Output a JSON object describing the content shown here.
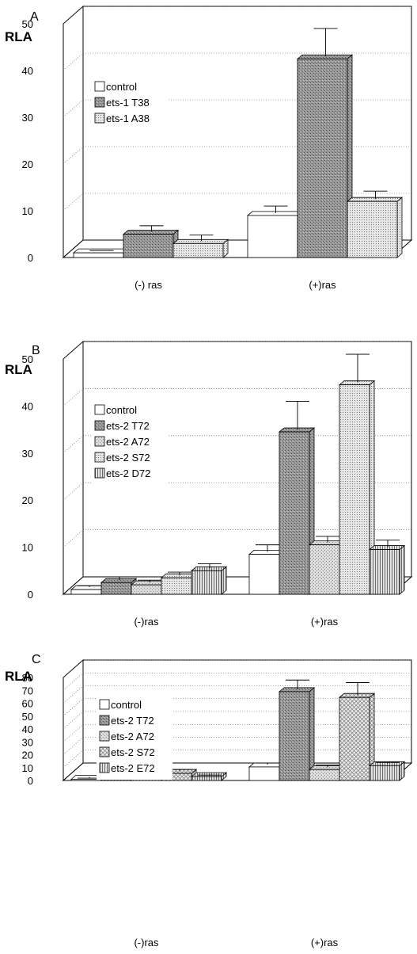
{
  "chart_data": [
    {
      "panel_label": "A",
      "type": "bar",
      "ylabel": "RLA",
      "ylim": [
        0,
        50
      ],
      "yticks": [
        0,
        10,
        20,
        30,
        40,
        50
      ],
      "categories": [
        "(-) ras",
        "(+)ras"
      ],
      "legend_position": "top-left",
      "grid": true,
      "series": [
        {
          "name": "control",
          "pattern": "white",
          "values": [
            1.0,
            9.0
          ],
          "errors": [
            0.5,
            2.0
          ]
        },
        {
          "name": "ets-1 T38",
          "pattern": "dark-stipple",
          "values": [
            5.0,
            42.5
          ],
          "errors": [
            1.8,
            6.5
          ]
        },
        {
          "name": "ets-1 A38",
          "pattern": "dots",
          "values": [
            3.0,
            12.0
          ],
          "errors": [
            1.8,
            2.2
          ]
        }
      ]
    },
    {
      "panel_label": "B",
      "type": "bar",
      "ylabel": "RLA",
      "ylim": [
        0,
        50
      ],
      "yticks": [
        0,
        10,
        20,
        30,
        40,
        50
      ],
      "categories": [
        "(-)ras",
        "(+)ras"
      ],
      "legend_position": "top-left",
      "grid": true,
      "series": [
        {
          "name": "control",
          "pattern": "white",
          "values": [
            1.0,
            8.5
          ],
          "errors": [
            0.8,
            2.0
          ]
        },
        {
          "name": "ets-2 T72",
          "pattern": "dark-stipple",
          "values": [
            2.5,
            34.5
          ],
          "errors": [
            1.2,
            6.5
          ]
        },
        {
          "name": "ets-2 A72",
          "pattern": "light-stipple",
          "values": [
            2.0,
            10.5
          ],
          "errors": [
            1.0,
            1.8
          ]
        },
        {
          "name": "ets-2 S72",
          "pattern": "dots",
          "values": [
            3.5,
            44.5
          ],
          "errors": [
            1.2,
            6.5
          ]
        },
        {
          "name": "ets-2 D72",
          "pattern": "vertical",
          "values": [
            5.0,
            9.5
          ],
          "errors": [
            1.5,
            2.0
          ]
        }
      ]
    },
    {
      "panel_label": "C",
      "type": "bar",
      "ylabel": "RLA",
      "ylim": [
        0,
        80
      ],
      "yticks": [
        0,
        10,
        20,
        30,
        40,
        50,
        60,
        70,
        80
      ],
      "categories": [
        "(-)ras",
        "(+)ras"
      ],
      "legend_position": "top-left",
      "grid": true,
      "series": [
        {
          "name": "control",
          "pattern": "white",
          "values": [
            1.0,
            10.5
          ],
          "errors": [
            0.8,
            3.0
          ]
        },
        {
          "name": "ets-2 T72",
          "pattern": "dark-stipple",
          "values": [
            3.5,
            69.0
          ],
          "errors": [
            1.2,
            9.0
          ]
        },
        {
          "name": "ets-2 A72",
          "pattern": "light-stipple",
          "values": [
            2.0,
            8.5
          ],
          "errors": [
            1.0,
            3.5
          ]
        },
        {
          "name": "ets-2 S72",
          "pattern": "crosshatch",
          "values": [
            5.5,
            64.5
          ],
          "errors": [
            3.0,
            11.5
          ]
        },
        {
          "name": "ets-2 E72",
          "pattern": "vertical",
          "values": [
            3.0,
            11.5
          ],
          "errors": [
            1.2,
            2.5
          ]
        }
      ]
    }
  ]
}
